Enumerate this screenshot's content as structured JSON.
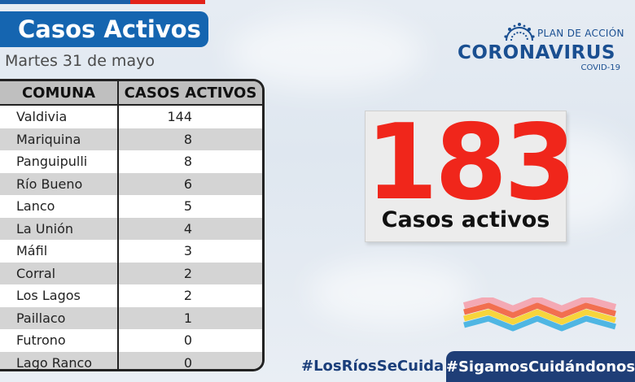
{
  "header": {
    "title": "Casos Activos",
    "date": "Martes 31 de mayo"
  },
  "table": {
    "columns": [
      "COMUNA",
      "CASOS ACTIVOS"
    ],
    "rows": [
      {
        "comuna": "Valdivia",
        "casos": "144"
      },
      {
        "comuna": "Mariquina",
        "casos": "8"
      },
      {
        "comuna": "Panguipulli",
        "casos": "8"
      },
      {
        "comuna": "Río Bueno",
        "casos": "6"
      },
      {
        "comuna": "Lanco",
        "casos": "5"
      },
      {
        "comuna": "La Unión",
        "casos": "4"
      },
      {
        "comuna": "Máfil",
        "casos": "3"
      },
      {
        "comuna": "Corral",
        "casos": "2"
      },
      {
        "comuna": "Los Lagos",
        "casos": "2"
      },
      {
        "comuna": "Paillaco",
        "casos": "1"
      },
      {
        "comuna": "Futrono",
        "casos": "0"
      },
      {
        "comuna": "Lago Ranco",
        "casos": "0"
      }
    ]
  },
  "logo": {
    "plan": "PLAN DE ACCIÓN",
    "name": "CORONAVIRUS",
    "sub": "COVID-19",
    "icon": "virus-icon"
  },
  "total": {
    "number": "183",
    "label": "Casos activos"
  },
  "hashtags": {
    "first": "#LosRíosSeCuida",
    "second": "#SigamosCuidándonos"
  },
  "colors": {
    "title_bg": "#1565b0",
    "number": "#f0261b",
    "hashtag_bg": "#1f3e77",
    "logo_blue": "#1a4f91"
  }
}
